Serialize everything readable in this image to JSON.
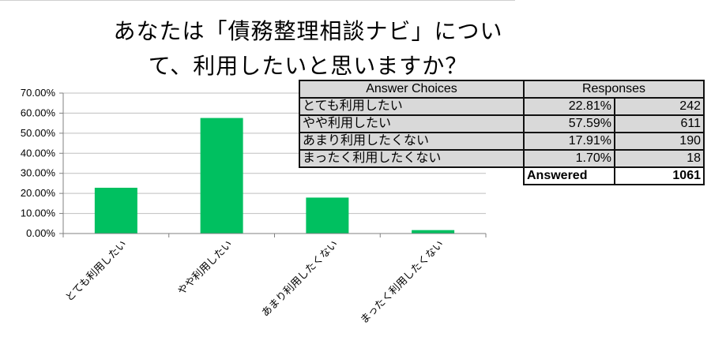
{
  "title_lines": [
    "あなたは「債務整理相談ナビ」につい",
    "て、利用したいと思いますか？"
  ],
  "table": {
    "headers": [
      "Answer Choices",
      "Responses"
    ],
    "rows": [
      {
        "choice": "とても利用したい",
        "percent": "22.81%",
        "count": "242"
      },
      {
        "choice": "やや利用したい",
        "percent": "57.59%",
        "count": "611"
      },
      {
        "choice": "あまり利用したくない",
        "percent": "17.91%",
        "count": "190"
      },
      {
        "choice": "まったく利用したくない",
        "percent": "1.70%",
        "count": "18"
      }
    ],
    "total_label": "Answered",
    "total_value": "1061"
  },
  "chart_data": {
    "type": "bar",
    "title": "",
    "categories": [
      "とても利用したい",
      "やや利用したい",
      "あまり利用したくない",
      "まったく利用したくない"
    ],
    "values": [
      22.81,
      57.59,
      17.91,
      1.7
    ],
    "ylim": [
      0,
      70
    ],
    "yticks": [
      "0.00%",
      "10.00%",
      "20.00%",
      "30.00%",
      "40.00%",
      "50.00%",
      "60.00%",
      "70.00%"
    ],
    "xlabel": "",
    "ylabel": "",
    "grid": true,
    "legend": "none",
    "bar_color": "#00c060",
    "grid_color": "#bfbfbf",
    "axis_color": "#808080"
  }
}
